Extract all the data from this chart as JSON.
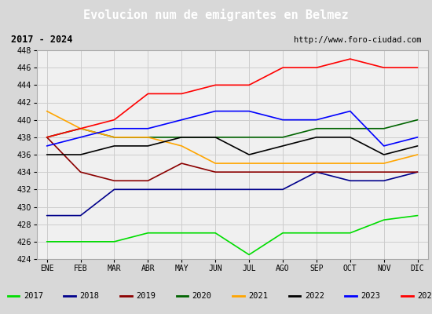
{
  "title": "Evolucion num de emigrantes en Belmez",
  "subtitle_left": "2017 - 2024",
  "subtitle_right": "http://www.foro-ciudad.com",
  "months": [
    "ENE",
    "FEB",
    "MAR",
    "ABR",
    "MAY",
    "JUN",
    "JUL",
    "AGO",
    "SEP",
    "OCT",
    "NOV",
    "DIC"
  ],
  "series": {
    "2017": {
      "color": "#00dd00",
      "data": [
        426,
        426,
        426,
        427,
        427,
        427,
        424.5,
        427,
        427,
        427,
        428.5,
        429
      ]
    },
    "2018": {
      "color": "#00008b",
      "data": [
        429,
        429,
        432,
        432,
        432,
        432,
        432,
        432,
        434,
        433,
        433,
        434
      ]
    },
    "2019": {
      "color": "#8b0000",
      "data": [
        438,
        434,
        433,
        433,
        435,
        434,
        434,
        434,
        434,
        434,
        434,
        434
      ]
    },
    "2020": {
      "color": "#006400",
      "data": [
        438,
        439,
        438,
        438,
        438,
        438,
        438,
        438,
        439,
        439,
        439,
        440
      ]
    },
    "2021": {
      "color": "#ffa500",
      "data": [
        441,
        439,
        438,
        438,
        437,
        435,
        435,
        435,
        435,
        435,
        435,
        436
      ]
    },
    "2022": {
      "color": "#000000",
      "data": [
        436,
        436,
        437,
        437,
        438,
        438,
        436,
        437,
        438,
        438,
        436,
        437
      ]
    },
    "2023": {
      "color": "#0000ff",
      "data": [
        437,
        438,
        439,
        439,
        440,
        441,
        441,
        440,
        440,
        441,
        437,
        438
      ]
    },
    "2024": {
      "color": "#ff0000",
      "data": [
        438,
        439,
        440,
        443,
        443,
        444,
        444,
        446,
        446,
        447,
        446,
        446
      ]
    }
  },
  "ylim": [
    424,
    448
  ],
  "yticks": [
    424,
    426,
    428,
    430,
    432,
    434,
    436,
    438,
    440,
    442,
    444,
    446,
    448
  ],
  "fig_bg": "#d8d8d8",
  "title_bg": "#5588cc",
  "title_color": "#ffffff",
  "subtitle_bg": "#e8e8e8",
  "plot_bg": "#f0f0f0",
  "legend_bg": "#ffffff",
  "grid_color": "#cccccc"
}
